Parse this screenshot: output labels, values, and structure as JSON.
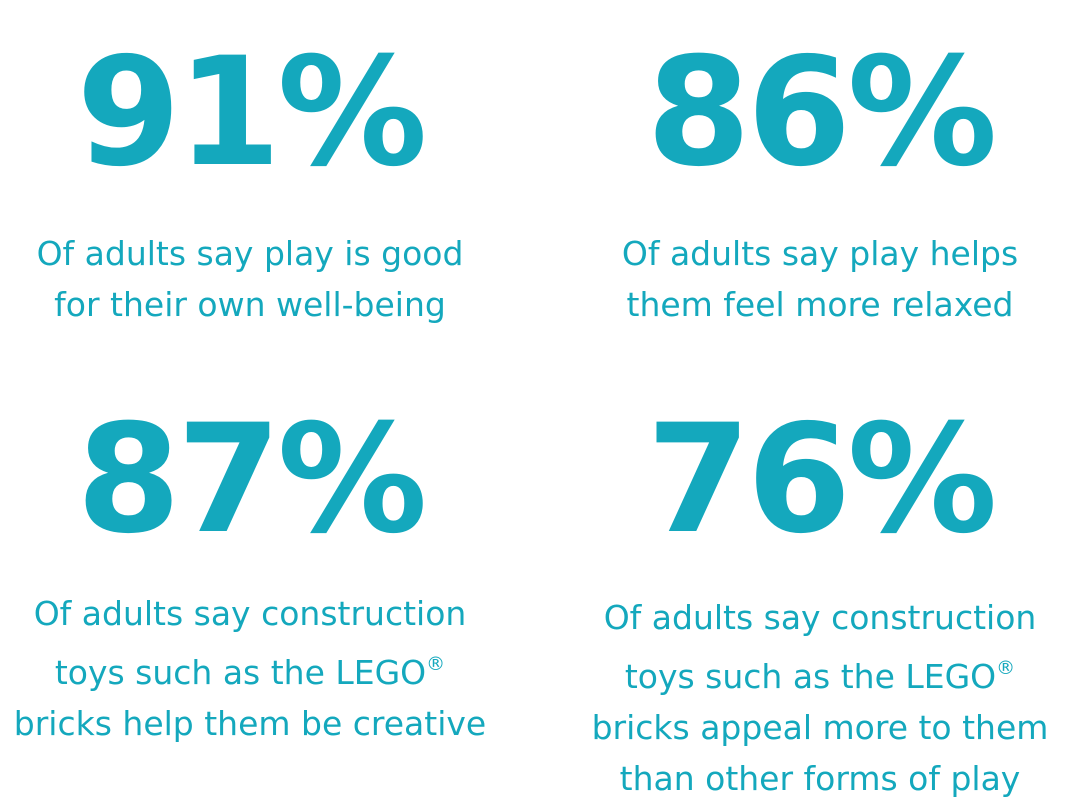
{
  "stats": [
    {
      "value": "91%",
      "caption_lines": [
        "Of adults say play is good",
        "for their own well-being"
      ]
    },
    {
      "value": "86%",
      "caption_lines": [
        "Of adults say play helps",
        "them feel more relaxed"
      ]
    },
    {
      "value": "87%",
      "caption_lines": [
        "Of adults say construction",
        "toys such as the LEGO",
        "bricks help them be creative"
      ],
      "trademark": "®"
    },
    {
      "value": "76%",
      "caption_lines": [
        "Of adults say construction",
        "toys such as the LEGO",
        "bricks appeal more to them",
        "than other forms of play"
      ],
      "trademark": "®"
    }
  ],
  "colors": {
    "text": "#14a8bd",
    "background": "#ffffff"
  }
}
